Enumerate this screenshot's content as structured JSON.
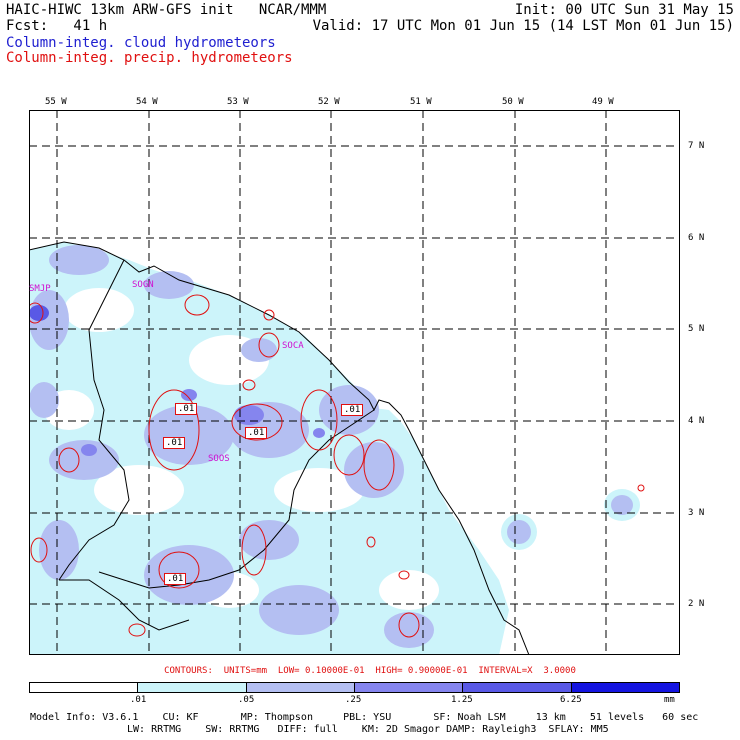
{
  "header": {
    "title": "HAIC-HIWC 13km ARW-GFS init   NCAR/MMM",
    "fcst": "Fcst:   41 h",
    "init": "Init: 00 UTC Sun 31 May 15",
    "valid": "Valid: 17 UTC Mon 01 Jun 15 (14 LST Mon 01 Jun 15)",
    "legend_cloud": "Column-integ. cloud hydrometeors",
    "legend_precip": "Column-integ. precip. hydrometeors"
  },
  "colors": {
    "cloud_text": "#1f1fd0",
    "precip_contour": "#e01010",
    "station_label": "#d010d0",
    "shade_levels": [
      "#ffffff",
      "#ccf4fa",
      "#b4bff2",
      "#8585ee",
      "#5959e6",
      "#1414e0"
    ]
  },
  "lon_labels": [
    "55 W",
    "54 W",
    "53 W",
    "52 W",
    "51 W",
    "50 W",
    "49 W"
  ],
  "lat_labels": [
    "7 N",
    "6 N",
    "5 N",
    "4 N",
    "3 N",
    "2 N"
  ],
  "stations": [
    "SMJP",
    "SOGN",
    "SOCA",
    "SOOS"
  ],
  "contour_labels": [
    ".01",
    ".01",
    ".01",
    ".01",
    ".01"
  ],
  "contour_info": "CONTOURS:  UNITS=mm  LOW= 0.10000E-01  HIGH= 0.90000E-01  INTERVAL=X  3.0000",
  "colorbar": {
    "labels": [
      ".01",
      ".05",
      ".25",
      "1.25",
      "6.25"
    ],
    "units": "mm"
  },
  "footer": {
    "line1": "Model Info: V3.6.1    CU: KF       MP: Thompson     PBL: YSU       SF: Noah LSM     13 km    51 levels   60 sec",
    "line2": "LW: RRTMG    SW: RRTMG   DIFF: full    KM: 2D Smagor DAMP: Rayleigh3  SFLAY: MM5"
  }
}
